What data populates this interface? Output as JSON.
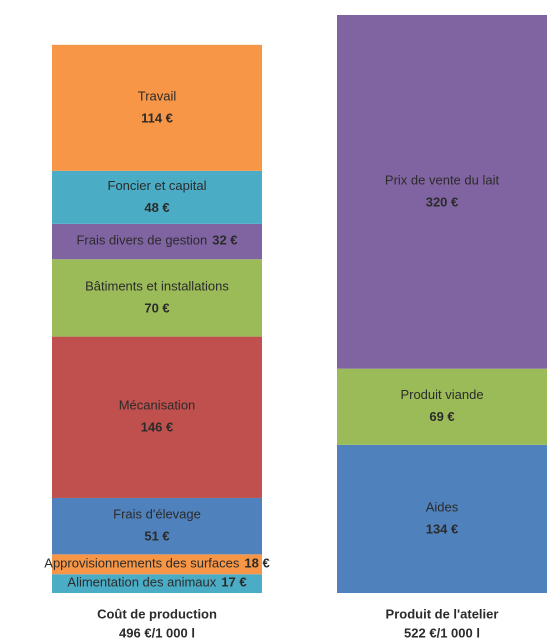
{
  "chart_data": {
    "type": "stacked_bar",
    "bars": [
      {
        "name": "Coût de production",
        "total_label": "496 €/1 000 l",
        "segments": [
          {
            "name": "Alimentation des animaux",
            "value": 17,
            "value_label": "17 €",
            "color": "#4bacc6"
          },
          {
            "name": "Approvisionnements des surfaces",
            "value": 18,
            "value_label": "18 €",
            "color": "#f79646"
          },
          {
            "name": "Frais d'élevage",
            "value": 51,
            "value_label": "51 €",
            "color": "#4f81bd"
          },
          {
            "name": "Mécanisation",
            "value": 146,
            "value_label": "146 €",
            "color": "#c0504d"
          },
          {
            "name": "Bâtiments et installations",
            "value": 70,
            "value_label": "70 €",
            "color": "#9bbb59"
          },
          {
            "name": "Frais divers de gestion",
            "value": 32,
            "value_label": "32 €",
            "color": "#8064a2"
          },
          {
            "name": "Foncier et capital",
            "value": 48,
            "value_label": "48 €",
            "color": "#4bacc6"
          },
          {
            "name": "Travail",
            "value": 114,
            "value_label": "114 €",
            "color": "#f79646"
          }
        ]
      },
      {
        "name": "Produit de l'atelier",
        "total_label": "522 €/1 000 l",
        "segments": [
          {
            "name": "Aides",
            "value": 134,
            "value_label": "134 €",
            "color": "#4f81bd"
          },
          {
            "name": "Produit viande",
            "value": 69,
            "value_label": "69 €",
            "color": "#9bbb59"
          },
          {
            "name": "Prix de vente du lait",
            "value": 320,
            "value_label": "320 €",
            "color": "#8064a2"
          }
        ]
      }
    ]
  }
}
